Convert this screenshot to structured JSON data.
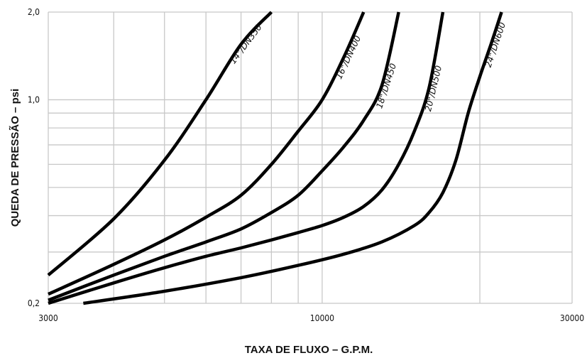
{
  "chart_data": {
    "type": "line",
    "xlabel": "TAXA DE FLUXO – G.P.M.",
    "ylabel": "QUEDA DE PRESSÃO – psi",
    "x_scale": "log",
    "y_scale": "log",
    "xlim": [
      3000,
      30000
    ],
    "ylim": [
      0.2,
      2.0
    ],
    "x_tick_labels": [
      "3000",
      "10000",
      "30000"
    ],
    "y_tick_labels": [
      "0,2",
      "1,0",
      "2,0"
    ],
    "grid": true,
    "series": [
      {
        "name": "14\"/DN350",
        "x": [
          3000,
          4000,
          5000,
          6000,
          7000,
          8000
        ],
        "y": [
          0.25,
          0.39,
          0.62,
          1.0,
          1.55,
          2.0
        ]
      },
      {
        "name": "16\"/DN400",
        "x": [
          3000,
          4000,
          5000,
          6000,
          7000,
          8000,
          9000,
          10000,
          11000,
          12000
        ],
        "y": [
          0.215,
          0.272,
          0.33,
          0.395,
          0.47,
          0.6,
          0.78,
          1.0,
          1.4,
          2.0
        ]
      },
      {
        "name": "18\"/DN450",
        "x": [
          3000,
          4000,
          5000,
          6000,
          7000,
          8000,
          9000,
          10000,
          11000,
          12000,
          13000,
          14000
        ],
        "y": [
          0.205,
          0.25,
          0.29,
          0.325,
          0.36,
          0.41,
          0.47,
          0.57,
          0.69,
          0.85,
          1.12,
          2.0
        ]
      },
      {
        "name": "20\"/DN500",
        "x": [
          3000,
          4000,
          5000,
          6000,
          7000,
          8000,
          9000,
          10000,
          11000,
          12000,
          13000,
          14000,
          15000,
          16000,
          17000
        ],
        "y": [
          0.2,
          0.235,
          0.265,
          0.29,
          0.31,
          0.33,
          0.35,
          0.37,
          0.395,
          0.43,
          0.49,
          0.6,
          0.78,
          1.1,
          2.0
        ]
      },
      {
        "name": "24\"/DN600",
        "x": [
          3500,
          5000,
          7000,
          9000,
          11000,
          13000,
          15000,
          16000,
          17000,
          18000,
          19000,
          20000,
          21000,
          22000
        ],
        "y": [
          0.2,
          0.22,
          0.245,
          0.27,
          0.295,
          0.325,
          0.37,
          0.41,
          0.48,
          0.62,
          0.9,
          1.2,
          1.55,
          2.0
        ]
      }
    ]
  }
}
